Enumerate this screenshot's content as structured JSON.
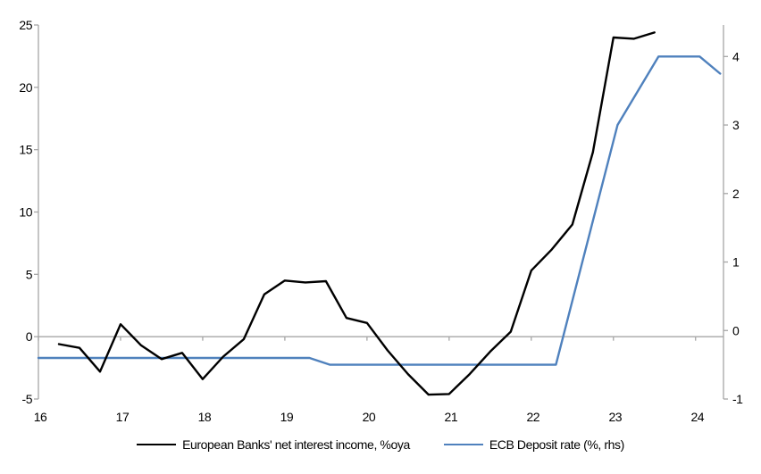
{
  "chart_data": {
    "type": "line",
    "title": "",
    "grid": false,
    "legend_position": "bottom",
    "x_axis": {
      "range": [
        16,
        24.34
      ],
      "ticks": [
        16,
        17,
        18,
        19,
        20,
        21,
        22,
        23,
        24
      ],
      "tick_labels": [
        "16",
        "17",
        "18",
        "19",
        "20",
        "21",
        "22",
        "23",
        "24"
      ]
    },
    "left_axis": {
      "range": [
        -5,
        25
      ],
      "ticks": [
        25,
        20,
        15,
        10,
        5,
        0,
        -5
      ],
      "tick_labels": [
        "25",
        "20",
        "15",
        "10",
        "5",
        "0",
        "-5"
      ],
      "zero_line": true
    },
    "right_axis": {
      "range": [
        -1,
        4.46
      ],
      "ticks": [
        4,
        3,
        2,
        1,
        0,
        -1
      ],
      "tick_labels": [
        "4",
        "3",
        "2",
        "1",
        "0",
        "-1"
      ]
    },
    "series": [
      {
        "name": "European Banks' net interest income, %oya",
        "axis": "left",
        "color": "#000000",
        "x": [
          16.25,
          16.5,
          16.75,
          17.0,
          17.25,
          17.5,
          17.75,
          18.0,
          18.25,
          18.5,
          18.75,
          19.0,
          19.25,
          19.5,
          19.75,
          20.0,
          20.25,
          20.5,
          20.75,
          21.0,
          21.25,
          21.5,
          21.75,
          22.0,
          22.25,
          22.5,
          22.75,
          23.0,
          23.25,
          23.5
        ],
        "values": [
          -0.6,
          -0.9,
          -2.8,
          1.0,
          -0.7,
          -1.8,
          -1.3,
          -3.4,
          -1.6,
          -0.2,
          3.4,
          4.5,
          4.35,
          4.45,
          1.5,
          1.1,
          -1.1,
          -3.0,
          -4.65,
          -4.6,
          -3.0,
          -1.2,
          0.4,
          5.3,
          7.0,
          9.0,
          14.8,
          24.0,
          23.9,
          24.4
        ]
      },
      {
        "name": "ECB Deposit rate (%, rhs)",
        "axis": "right",
        "color": "#4F81BD",
        "x": [
          16.0,
          19.3,
          19.55,
          22.3,
          23.05,
          23.55,
          24.05,
          24.3
        ],
        "values": [
          -0.4,
          -0.4,
          -0.5,
          -0.5,
          3.0,
          4.0,
          4.0,
          3.75
        ]
      }
    ],
    "colors": {
      "axis": "#A6A6A6",
      "zero_line": "#A6A6A6",
      "text": "#000000"
    }
  }
}
